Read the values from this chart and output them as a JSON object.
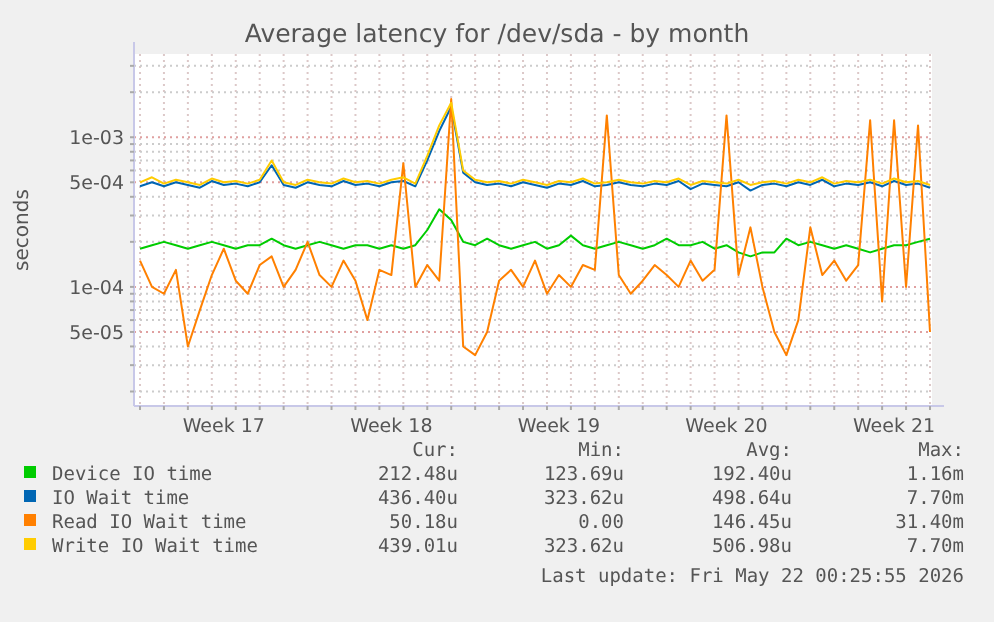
{
  "chart_data": {
    "type": "line",
    "title": "Average latency for /dev/sda - by month",
    "ylabel": "seconds",
    "log": "y",
    "grid": true,
    "legend": "bottom",
    "marker": "none",
    "line_style": "solid",
    "categories": [
      null,
      null,
      null,
      null,
      null,
      null,
      null,
      "Week 17",
      null,
      null,
      null,
      null,
      null,
      null,
      null,
      null,
      null,
      null,
      null,
      null,
      null,
      "Week 18",
      null,
      null,
      null,
      null,
      null,
      null,
      null,
      null,
      null,
      null,
      null,
      null,
      null,
      "Week 19",
      null,
      null,
      null,
      null,
      null,
      null,
      null,
      null,
      null,
      null,
      null,
      null,
      null,
      "Week 20",
      null,
      null,
      null,
      null,
      null,
      null,
      null,
      null,
      null,
      null,
      null,
      null,
      null,
      "Week 21",
      null,
      null,
      null
    ],
    "ylim": [
      1.6e-05,
      0.0036
    ],
    "yticks": [
      {
        "value": 2e-05,
        "label": null
      },
      {
        "value": 3e-05,
        "label": null
      },
      {
        "value": 4e-05,
        "label": null
      },
      {
        "value": 5e-05,
        "label": "5e-05"
      },
      {
        "value": 6e-05,
        "label": null
      },
      {
        "value": 7e-05,
        "label": null
      },
      {
        "value": 8e-05,
        "label": null
      },
      {
        "value": 9e-05,
        "label": null
      },
      {
        "value": 0.0001,
        "label": "1e-04"
      },
      {
        "value": 0.0002,
        "label": null
      },
      {
        "value": 0.0003,
        "label": null
      },
      {
        "value": 0.0004,
        "label": null
      },
      {
        "value": 0.0005,
        "label": "5e-04"
      },
      {
        "value": 0.0006,
        "label": null
      },
      {
        "value": 0.0007,
        "label": null
      },
      {
        "value": 0.0008,
        "label": null
      },
      {
        "value": 0.0009,
        "label": null
      },
      {
        "value": 0.001,
        "label": "1e-03"
      },
      {
        "value": 0.002,
        "label": null
      },
      {
        "value": 0.003,
        "label": null
      }
    ],
    "series": [
      {
        "name": "Device IO time",
        "color": "#00cc00",
        "values": [
          0.00018,
          0.00019,
          0.0002,
          0.00019,
          0.00018,
          0.00019,
          0.0002,
          0.00019,
          0.00018,
          0.00019,
          0.00019,
          0.00021,
          0.00019,
          0.00018,
          0.00019,
          0.0002,
          0.00019,
          0.00018,
          0.00019,
          0.00019,
          0.00018,
          0.00019,
          0.00018,
          0.00019,
          0.00024,
          0.00033,
          0.00028,
          0.0002,
          0.00019,
          0.00021,
          0.00019,
          0.00018,
          0.00019,
          0.0002,
          0.00018,
          0.00019,
          0.00022,
          0.00019,
          0.00018,
          0.00019,
          0.0002,
          0.00019,
          0.00018,
          0.00019,
          0.00021,
          0.00019,
          0.00019,
          0.0002,
          0.00018,
          0.00019,
          0.00017,
          0.00016,
          0.00017,
          0.00017,
          0.00021,
          0.00019,
          0.0002,
          0.00019,
          0.00018,
          0.00019,
          0.00018,
          0.00017,
          0.00018,
          0.00019,
          0.00019,
          0.0002,
          0.00021
        ]
      },
      {
        "name": "IO Wait time",
        "color": "#0066b3",
        "values": [
          0.00047,
          0.0005,
          0.00047,
          0.0005,
          0.00048,
          0.00046,
          0.00051,
          0.00048,
          0.00049,
          0.00047,
          0.0005,
          0.00065,
          0.00048,
          0.00046,
          0.0005,
          0.00048,
          0.00047,
          0.00051,
          0.00048,
          0.00049,
          0.00047,
          0.0005,
          0.00051,
          0.00047,
          0.0007,
          0.0011,
          0.0016,
          0.00058,
          0.0005,
          0.00048,
          0.00049,
          0.00047,
          0.0005,
          0.00048,
          0.00046,
          0.00049,
          0.00048,
          0.00051,
          0.00047,
          0.00048,
          0.0005,
          0.00048,
          0.00047,
          0.00049,
          0.00048,
          0.00051,
          0.00045,
          0.00049,
          0.00048,
          0.00047,
          0.0005,
          0.00044,
          0.00048,
          0.00049,
          0.00047,
          0.0005,
          0.00048,
          0.00052,
          0.00047,
          0.00049,
          0.00048,
          0.0005,
          0.00047,
          0.00051,
          0.00048,
          0.00049,
          0.00046
        ]
      },
      {
        "name": "Read IO Wait time",
        "color": "#ff8000",
        "values": [
          0.00015,
          0.0001,
          9e-05,
          0.00013,
          4e-05,
          7e-05,
          0.00012,
          0.00018,
          0.00011,
          9e-05,
          0.00014,
          0.00016,
          0.0001,
          0.00013,
          0.0002,
          0.00012,
          0.0001,
          0.00015,
          0.00011,
          6e-05,
          0.00013,
          0.00012,
          0.00067,
          0.0001,
          0.00014,
          0.00011,
          0.0018,
          4e-05,
          3.5e-05,
          5e-05,
          0.00011,
          0.00013,
          0.0001,
          0.00015,
          9e-05,
          0.00012,
          0.0001,
          0.00014,
          0.00013,
          0.0014,
          0.00012,
          9e-05,
          0.00011,
          0.00014,
          0.00012,
          0.0001,
          0.00015,
          0.00011,
          0.00013,
          0.0014,
          0.00012,
          0.00025,
          0.0001,
          5e-05,
          3.5e-05,
          6e-05,
          0.00025,
          0.00012,
          0.00015,
          0.00011,
          0.00014,
          0.0013,
          8e-05,
          0.0013,
          0.0001,
          0.0012,
          5e-05
        ]
      },
      {
        "name": "Write IO Wait time",
        "color": "#ffcc00",
        "values": [
          0.0005,
          0.00054,
          0.00049,
          0.00052,
          0.0005,
          0.00048,
          0.00053,
          0.0005,
          0.00051,
          0.00049,
          0.00052,
          0.0007,
          0.0005,
          0.00048,
          0.00052,
          0.0005,
          0.00049,
          0.00053,
          0.0005,
          0.00051,
          0.00049,
          0.00052,
          0.00054,
          0.00049,
          0.00075,
          0.0012,
          0.0017,
          0.0006,
          0.00052,
          0.0005,
          0.00051,
          0.00049,
          0.00052,
          0.0005,
          0.00048,
          0.00051,
          0.0005,
          0.00053,
          0.00049,
          0.0005,
          0.00052,
          0.0005,
          0.00049,
          0.00051,
          0.0005,
          0.00053,
          0.00048,
          0.00051,
          0.0005,
          0.00049,
          0.00052,
          0.00048,
          0.0005,
          0.00051,
          0.00049,
          0.00052,
          0.0005,
          0.00054,
          0.00049,
          0.00051,
          0.0005,
          0.00052,
          0.00049,
          0.00053,
          0.0005,
          0.00051,
          0.00048
        ]
      }
    ],
    "annotations": [
      "Cur:",
      "Min:",
      "Avg:",
      "Max:",
      "212.48u",
      "123.69u",
      "192.40u",
      "1.16m",
      "436.40u",
      "323.62u",
      "498.64u",
      "7.70m",
      "50.18u",
      "0.00",
      "146.45u",
      "31.40m",
      "439.01u",
      "323.62u",
      "506.98u",
      "7.70m",
      "Last update: Fri May 22 00:25:55 2026"
    ]
  }
}
